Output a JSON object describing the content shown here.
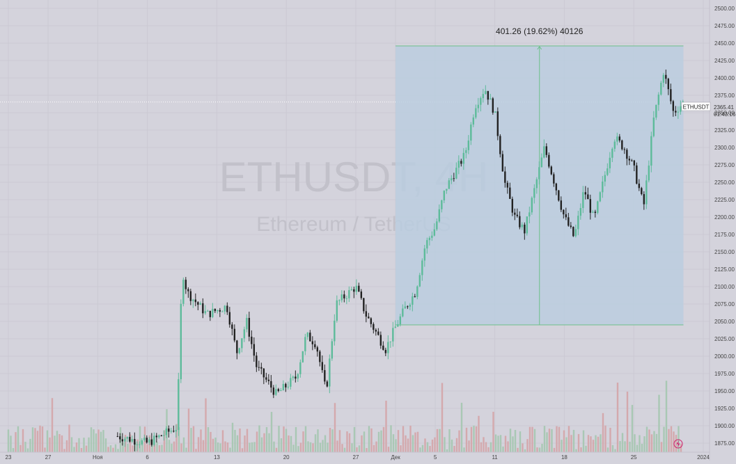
{
  "chart_data": {
    "type": "candlestick",
    "watermark": {
      "symbol": "ETHUSDT, 4H",
      "name": "Ethereum / TetherUS"
    },
    "y_axis": {
      "ticks": [
        1875,
        1900,
        1925,
        1950,
        1975,
        2000,
        2025,
        2050,
        2075,
        2100,
        2125,
        2150,
        2175,
        2200,
        2225,
        2250,
        2275,
        2300,
        2325,
        2350,
        2375,
        2400,
        2425,
        2450,
        2475,
        2500
      ],
      "tick_labels": [
        "1875.00",
        "1900.00",
        "1925.00",
        "1950.00",
        "1975.00",
        "2000.00",
        "2025.00",
        "2050.00",
        "2075.00",
        "2100.00",
        "2125.00",
        "2150.00",
        "2175.00",
        "2200.00",
        "2225.00",
        "2250.00",
        "2275.00",
        "2300.00",
        "2325.00",
        "2350.00",
        "2375.00",
        "2400.00",
        "2425.00",
        "2450.00",
        "2475.00",
        "2500.00"
      ],
      "range": [
        1862,
        2512
      ]
    },
    "x_axis": {
      "labels": [
        "23",
        "27",
        "Ноя",
        "6",
        "13",
        "20",
        "27",
        "Дек",
        "5",
        "11",
        "18",
        "25",
        "2024"
      ],
      "label_dates": [
        "2023-10-23",
        "2023-10-27",
        "2023-11-01",
        "2023-11-06",
        "2023-11-13",
        "2023-11-20",
        "2023-11-27",
        "2023-12-01",
        "2023-12-05",
        "2023-12-11",
        "2023-12-18",
        "2023-12-25",
        "2024-01-01"
      ],
      "range": [
        "2023-10-23",
        "2024-01-01"
      ]
    },
    "price_label": {
      "symbol": "ETHUSDT",
      "price": "2365.41",
      "countdown": "01:43:16",
      "value": 2365.41
    },
    "measure": {
      "text": "401.26 (19.62%) 40126",
      "low": 2045,
      "high": 2446,
      "start": "2023-12-01",
      "end": "2023-12-30"
    },
    "price_path": [
      [
        "2023-11-03",
        1885
      ],
      [
        "2023-11-06",
        1875
      ],
      [
        "2023-11-09",
        1898
      ],
      [
        "2023-11-09T12",
        2125
      ],
      [
        "2023-11-10",
        2092
      ],
      [
        "2023-11-12",
        2060
      ],
      [
        "2023-11-14",
        2072
      ],
      [
        "2023-11-15",
        2005
      ],
      [
        "2023-11-16",
        2050
      ],
      [
        "2023-11-17",
        1985
      ],
      [
        "2023-11-19",
        1945
      ],
      [
        "2023-11-21",
        1970
      ],
      [
        "2023-11-22",
        2030
      ],
      [
        "2023-11-23",
        2018
      ],
      [
        "2023-11-24",
        1948
      ],
      [
        "2023-11-25",
        2075
      ],
      [
        "2023-11-27",
        2100
      ],
      [
        "2023-11-28",
        2060
      ],
      [
        "2023-11-30",
        2010
      ],
      [
        "2023-12-01",
        2042
      ],
      [
        "2023-12-02",
        2070
      ],
      [
        "2023-12-03",
        2092
      ],
      [
        "2023-12-04",
        2160
      ],
      [
        "2023-12-05",
        2185
      ],
      [
        "2023-12-06",
        2240
      ],
      [
        "2023-12-08",
        2290
      ],
      [
        "2023-12-09",
        2360
      ],
      [
        "2023-12-10",
        2385
      ],
      [
        "2023-12-11",
        2350
      ],
      [
        "2023-12-12",
        2250
      ],
      [
        "2023-12-13",
        2200
      ],
      [
        "2023-12-14",
        2180
      ],
      [
        "2023-12-16",
        2300
      ],
      [
        "2023-12-17",
        2250
      ],
      [
        "2023-12-18",
        2200
      ],
      [
        "2023-12-19",
        2170
      ],
      [
        "2023-12-20",
        2240
      ],
      [
        "2023-12-21",
        2195
      ],
      [
        "2023-12-23",
        2315
      ],
      [
        "2023-12-24",
        2300
      ],
      [
        "2023-12-25",
        2270
      ],
      [
        "2023-12-26",
        2215
      ],
      [
        "2023-12-27",
        2340
      ],
      [
        "2023-12-28",
        2410
      ],
      [
        "2023-12-29",
        2350
      ],
      [
        "2023-12-30",
        2365
      ]
    ],
    "colors": {
      "up": "#5dbb9a",
      "down": "#222222",
      "volume_up": "#a9c8b4",
      "volume_down": "#d4a9ad",
      "measure_fill": "#b9cde0",
      "measure_line": "#6cc08a"
    }
  }
}
